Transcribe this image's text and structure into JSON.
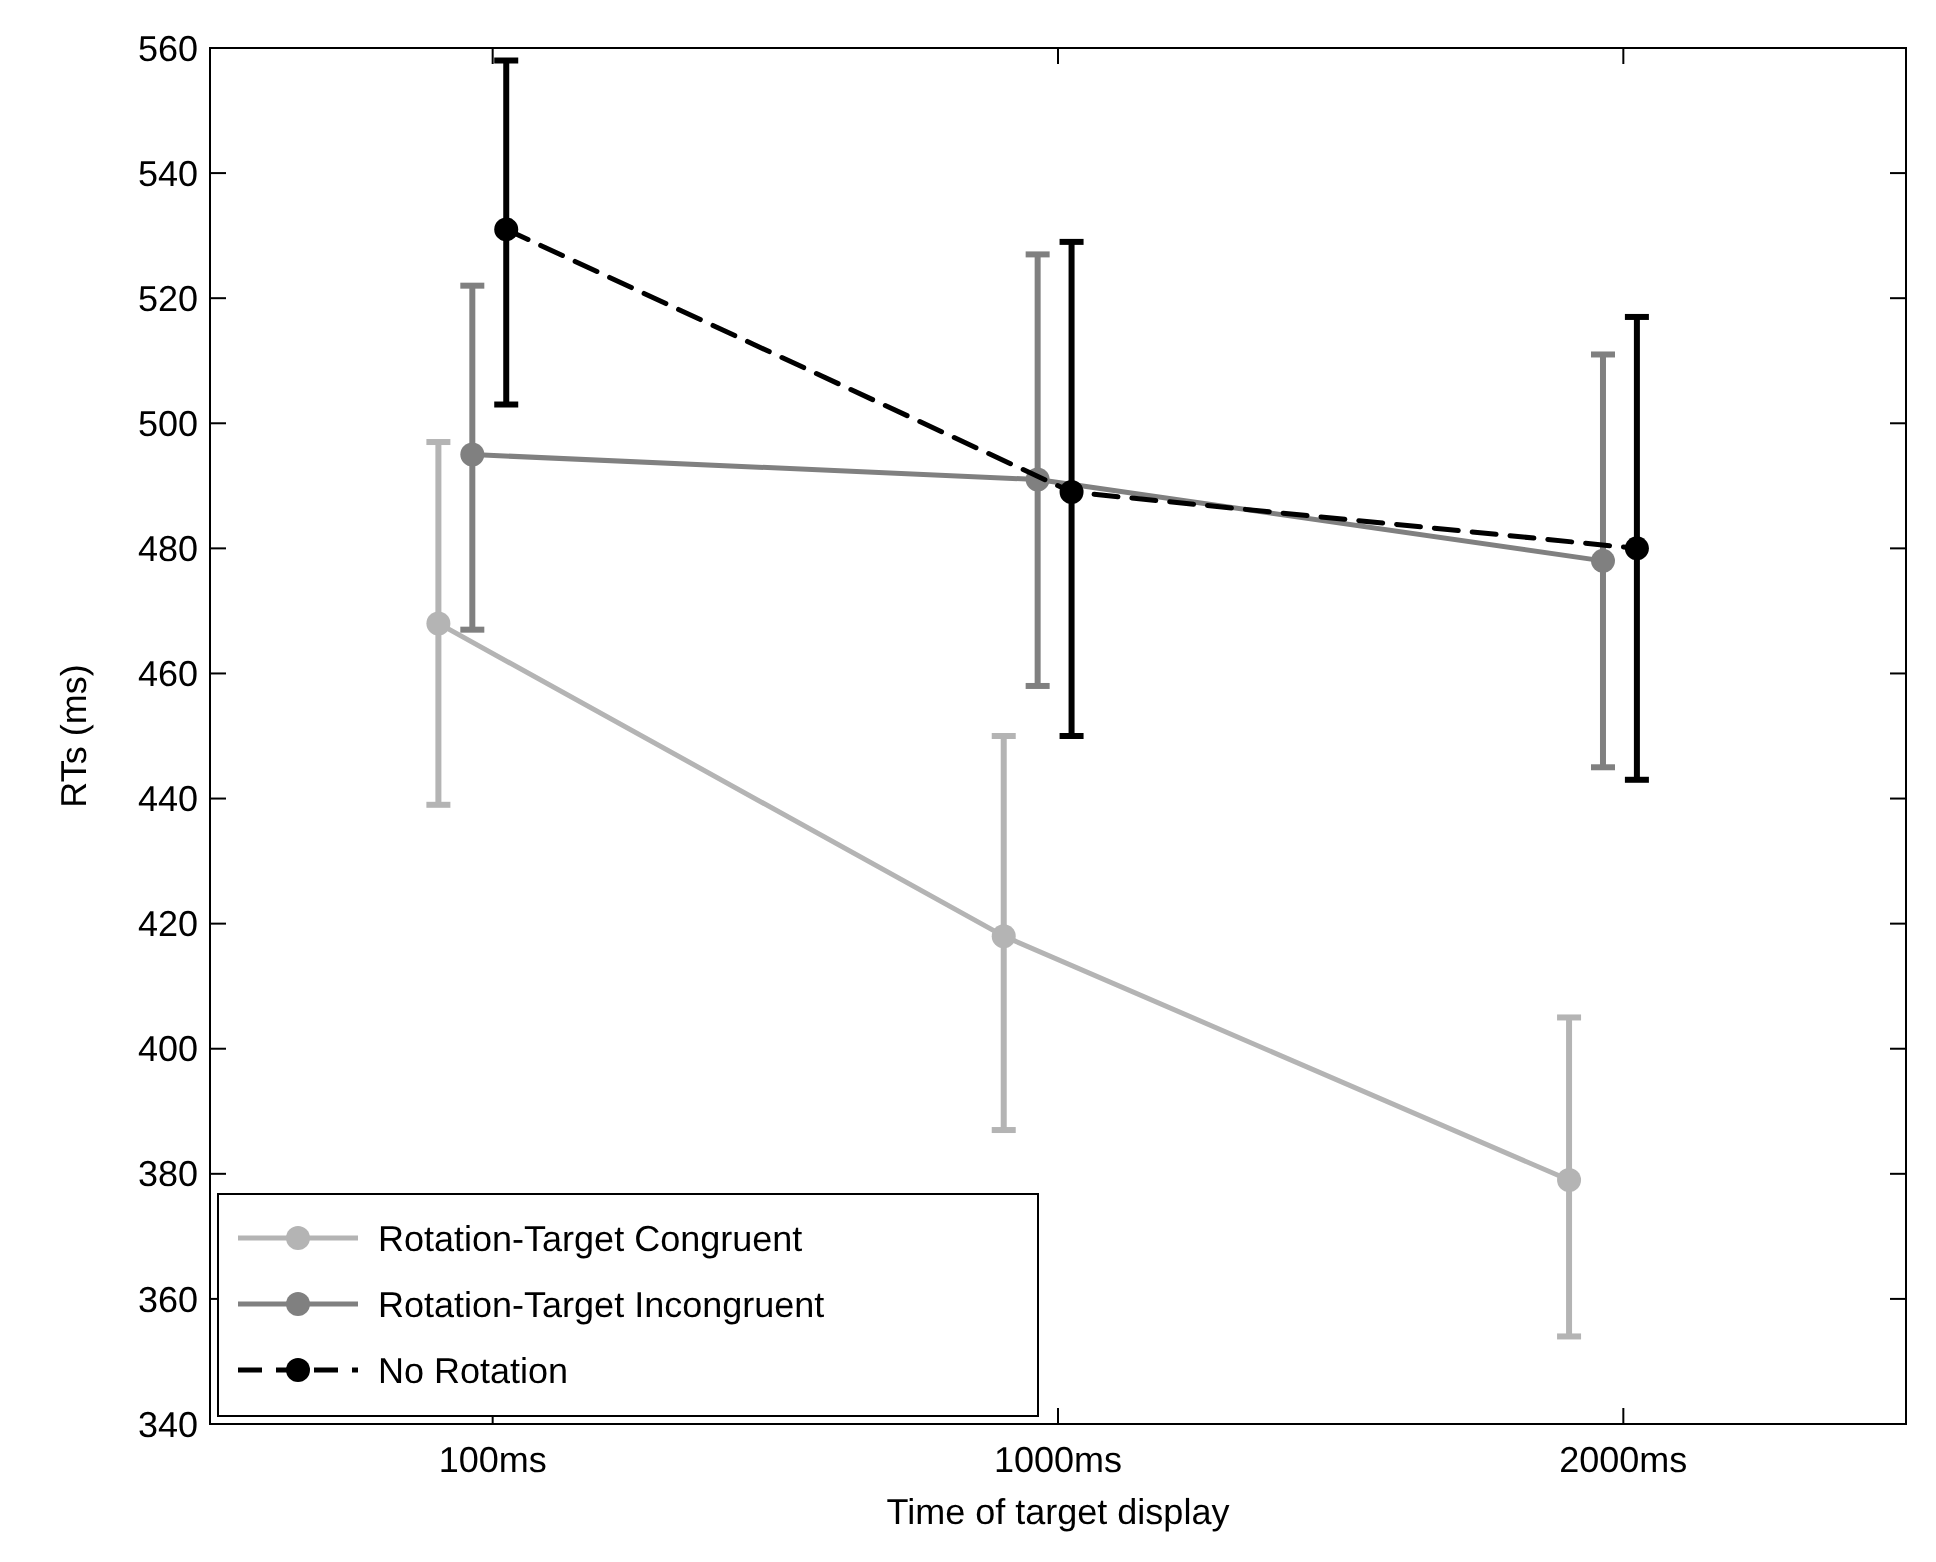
{
  "chart_data": {
    "type": "line",
    "xlabel": "Time of target display",
    "ylabel": "RTs (ms)",
    "categories": [
      "100ms",
      "1000ms",
      "2000ms"
    ],
    "ylim": [
      340,
      560
    ],
    "yticks": [
      340,
      360,
      380,
      400,
      420,
      440,
      460,
      480,
      500,
      520,
      540,
      560
    ],
    "grid": false,
    "legend": "bottom left",
    "marker": "circle",
    "series": [
      {
        "name": "Rotation-Target Congruent",
        "color": "#b4b4b4",
        "line_style": "solid",
        "values": [
          468,
          418,
          379
        ],
        "errors": [
          [
            439,
            497
          ],
          [
            387,
            450
          ],
          [
            354,
            405
          ]
        ]
      },
      {
        "name": "Rotation-Target Incongruent",
        "color": "#808080",
        "line_style": "solid",
        "values": [
          495,
          491,
          478
        ],
        "errors": [
          [
            467,
            522
          ],
          [
            458,
            527
          ],
          [
            445,
            511
          ]
        ]
      },
      {
        "name": "No Rotation",
        "color": "#000000",
        "line_style": "dashed",
        "values": [
          531,
          489,
          480
        ],
        "errors": [
          [
            503,
            558
          ],
          [
            450,
            529
          ],
          [
            443,
            517
          ]
        ]
      }
    ]
  }
}
